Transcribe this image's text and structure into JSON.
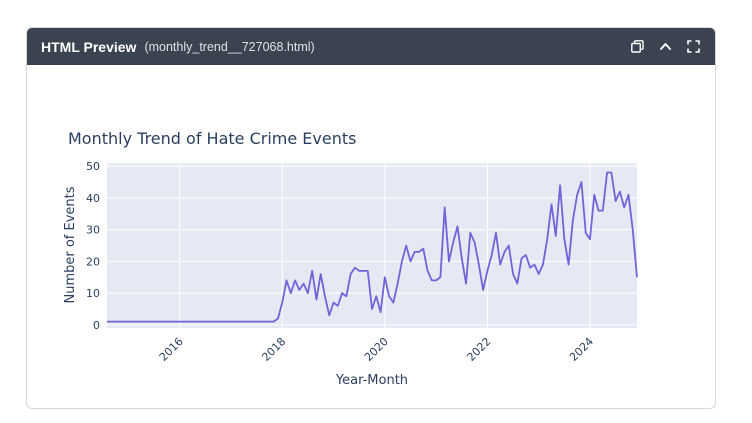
{
  "window": {
    "title": "HTML Preview",
    "file": "(monthly_trend__727068.html)",
    "icons": [
      "copy-icon",
      "chevron-up-icon",
      "fullscreen-icon"
    ]
  },
  "chart_data": {
    "type": "line",
    "title": "Monthly Trend of Hate Crime Events",
    "xlabel": "Year-Month",
    "ylabel": "Number of Events",
    "xlim": [
      "2014-08",
      "2024-12"
    ],
    "ylim": [
      -1,
      51
    ],
    "yticks": [
      0,
      10,
      20,
      30,
      40,
      50
    ],
    "xticks": [
      {
        "date": "2016-01",
        "label": "2016"
      },
      {
        "date": "2018-01",
        "label": "2018"
      },
      {
        "date": "2020-01",
        "label": "2020"
      },
      {
        "date": "2022-01",
        "label": "2022"
      },
      {
        "date": "2024-01",
        "label": "2024"
      }
    ],
    "grid": true,
    "colors": {
      "line": "#7462d8",
      "plot_bg": "#e5e9f3",
      "grid": "#ffffff"
    },
    "series": [
      {
        "x": [
          "2014-08",
          "2014-09",
          "2014-10",
          "2014-11",
          "2014-12",
          "2015-01",
          "2015-02",
          "2015-03",
          "2015-04",
          "2015-05",
          "2015-06",
          "2015-07",
          "2015-08",
          "2015-09",
          "2015-10",
          "2015-11",
          "2015-12",
          "2016-01",
          "2016-02",
          "2016-03",
          "2016-04",
          "2016-05",
          "2016-06",
          "2016-07",
          "2016-08",
          "2016-09",
          "2016-10",
          "2016-11",
          "2016-12",
          "2017-01",
          "2017-02",
          "2017-03",
          "2017-04",
          "2017-05",
          "2017-06",
          "2017-07",
          "2017-08",
          "2017-09",
          "2017-10",
          "2017-11",
          "2017-12",
          "2018-01",
          "2018-02",
          "2018-03",
          "2018-04",
          "2018-05",
          "2018-06",
          "2018-07",
          "2018-08",
          "2018-09",
          "2018-10",
          "2018-11",
          "2018-12",
          "2019-01",
          "2019-02",
          "2019-03",
          "2019-04",
          "2019-05",
          "2019-06",
          "2019-07",
          "2019-08",
          "2019-09",
          "2019-10",
          "2019-11",
          "2019-12",
          "2020-01",
          "2020-02",
          "2020-03",
          "2020-04",
          "2020-05",
          "2020-06",
          "2020-07",
          "2020-08",
          "2020-09",
          "2020-10",
          "2020-11",
          "2020-12",
          "2021-01",
          "2021-02",
          "2021-03",
          "2021-04",
          "2021-05",
          "2021-06",
          "2021-07",
          "2021-08",
          "2021-09",
          "2021-10",
          "2021-11",
          "2021-12",
          "2022-01",
          "2022-02",
          "2022-03",
          "2022-04",
          "2022-05",
          "2022-06",
          "2022-07",
          "2022-08",
          "2022-09",
          "2022-10",
          "2022-11",
          "2022-12",
          "2023-01",
          "2023-02",
          "2023-03",
          "2023-04",
          "2023-05",
          "2023-06",
          "2023-07",
          "2023-08",
          "2023-09",
          "2023-10",
          "2023-11",
          "2023-12",
          "2024-01",
          "2024-02",
          "2024-03",
          "2024-04",
          "2024-05",
          "2024-06",
          "2024-07",
          "2024-08",
          "2024-09",
          "2024-10",
          "2024-11",
          "2024-12"
        ],
        "values": [
          1,
          1,
          1,
          1,
          1,
          1,
          1,
          1,
          1,
          1,
          1,
          1,
          1,
          1,
          1,
          1,
          1,
          1,
          1,
          1,
          1,
          1,
          1,
          1,
          1,
          1,
          1,
          1,
          1,
          1,
          1,
          1,
          1,
          1,
          1,
          1,
          1,
          1,
          1,
          1,
          2,
          7,
          14,
          10,
          14,
          11,
          13,
          10,
          17,
          8,
          16,
          9,
          3,
          7,
          6,
          10,
          9,
          16,
          18,
          17,
          17,
          17,
          5,
          9,
          4,
          15,
          9,
          7,
          13,
          20,
          25,
          20,
          23,
          23,
          24,
          17,
          14,
          14,
          15,
          37,
          20,
          26,
          31,
          21,
          13,
          29,
          26,
          19,
          11,
          17,
          22,
          29,
          19,
          23,
          25,
          16,
          13,
          21,
          22,
          18,
          19,
          16,
          19,
          27,
          38,
          28,
          44,
          27,
          19,
          33,
          41,
          45,
          29,
          27,
          41,
          36,
          36,
          48,
          48,
          39,
          42,
          37,
          41,
          30,
          15
        ]
      }
    ]
  }
}
